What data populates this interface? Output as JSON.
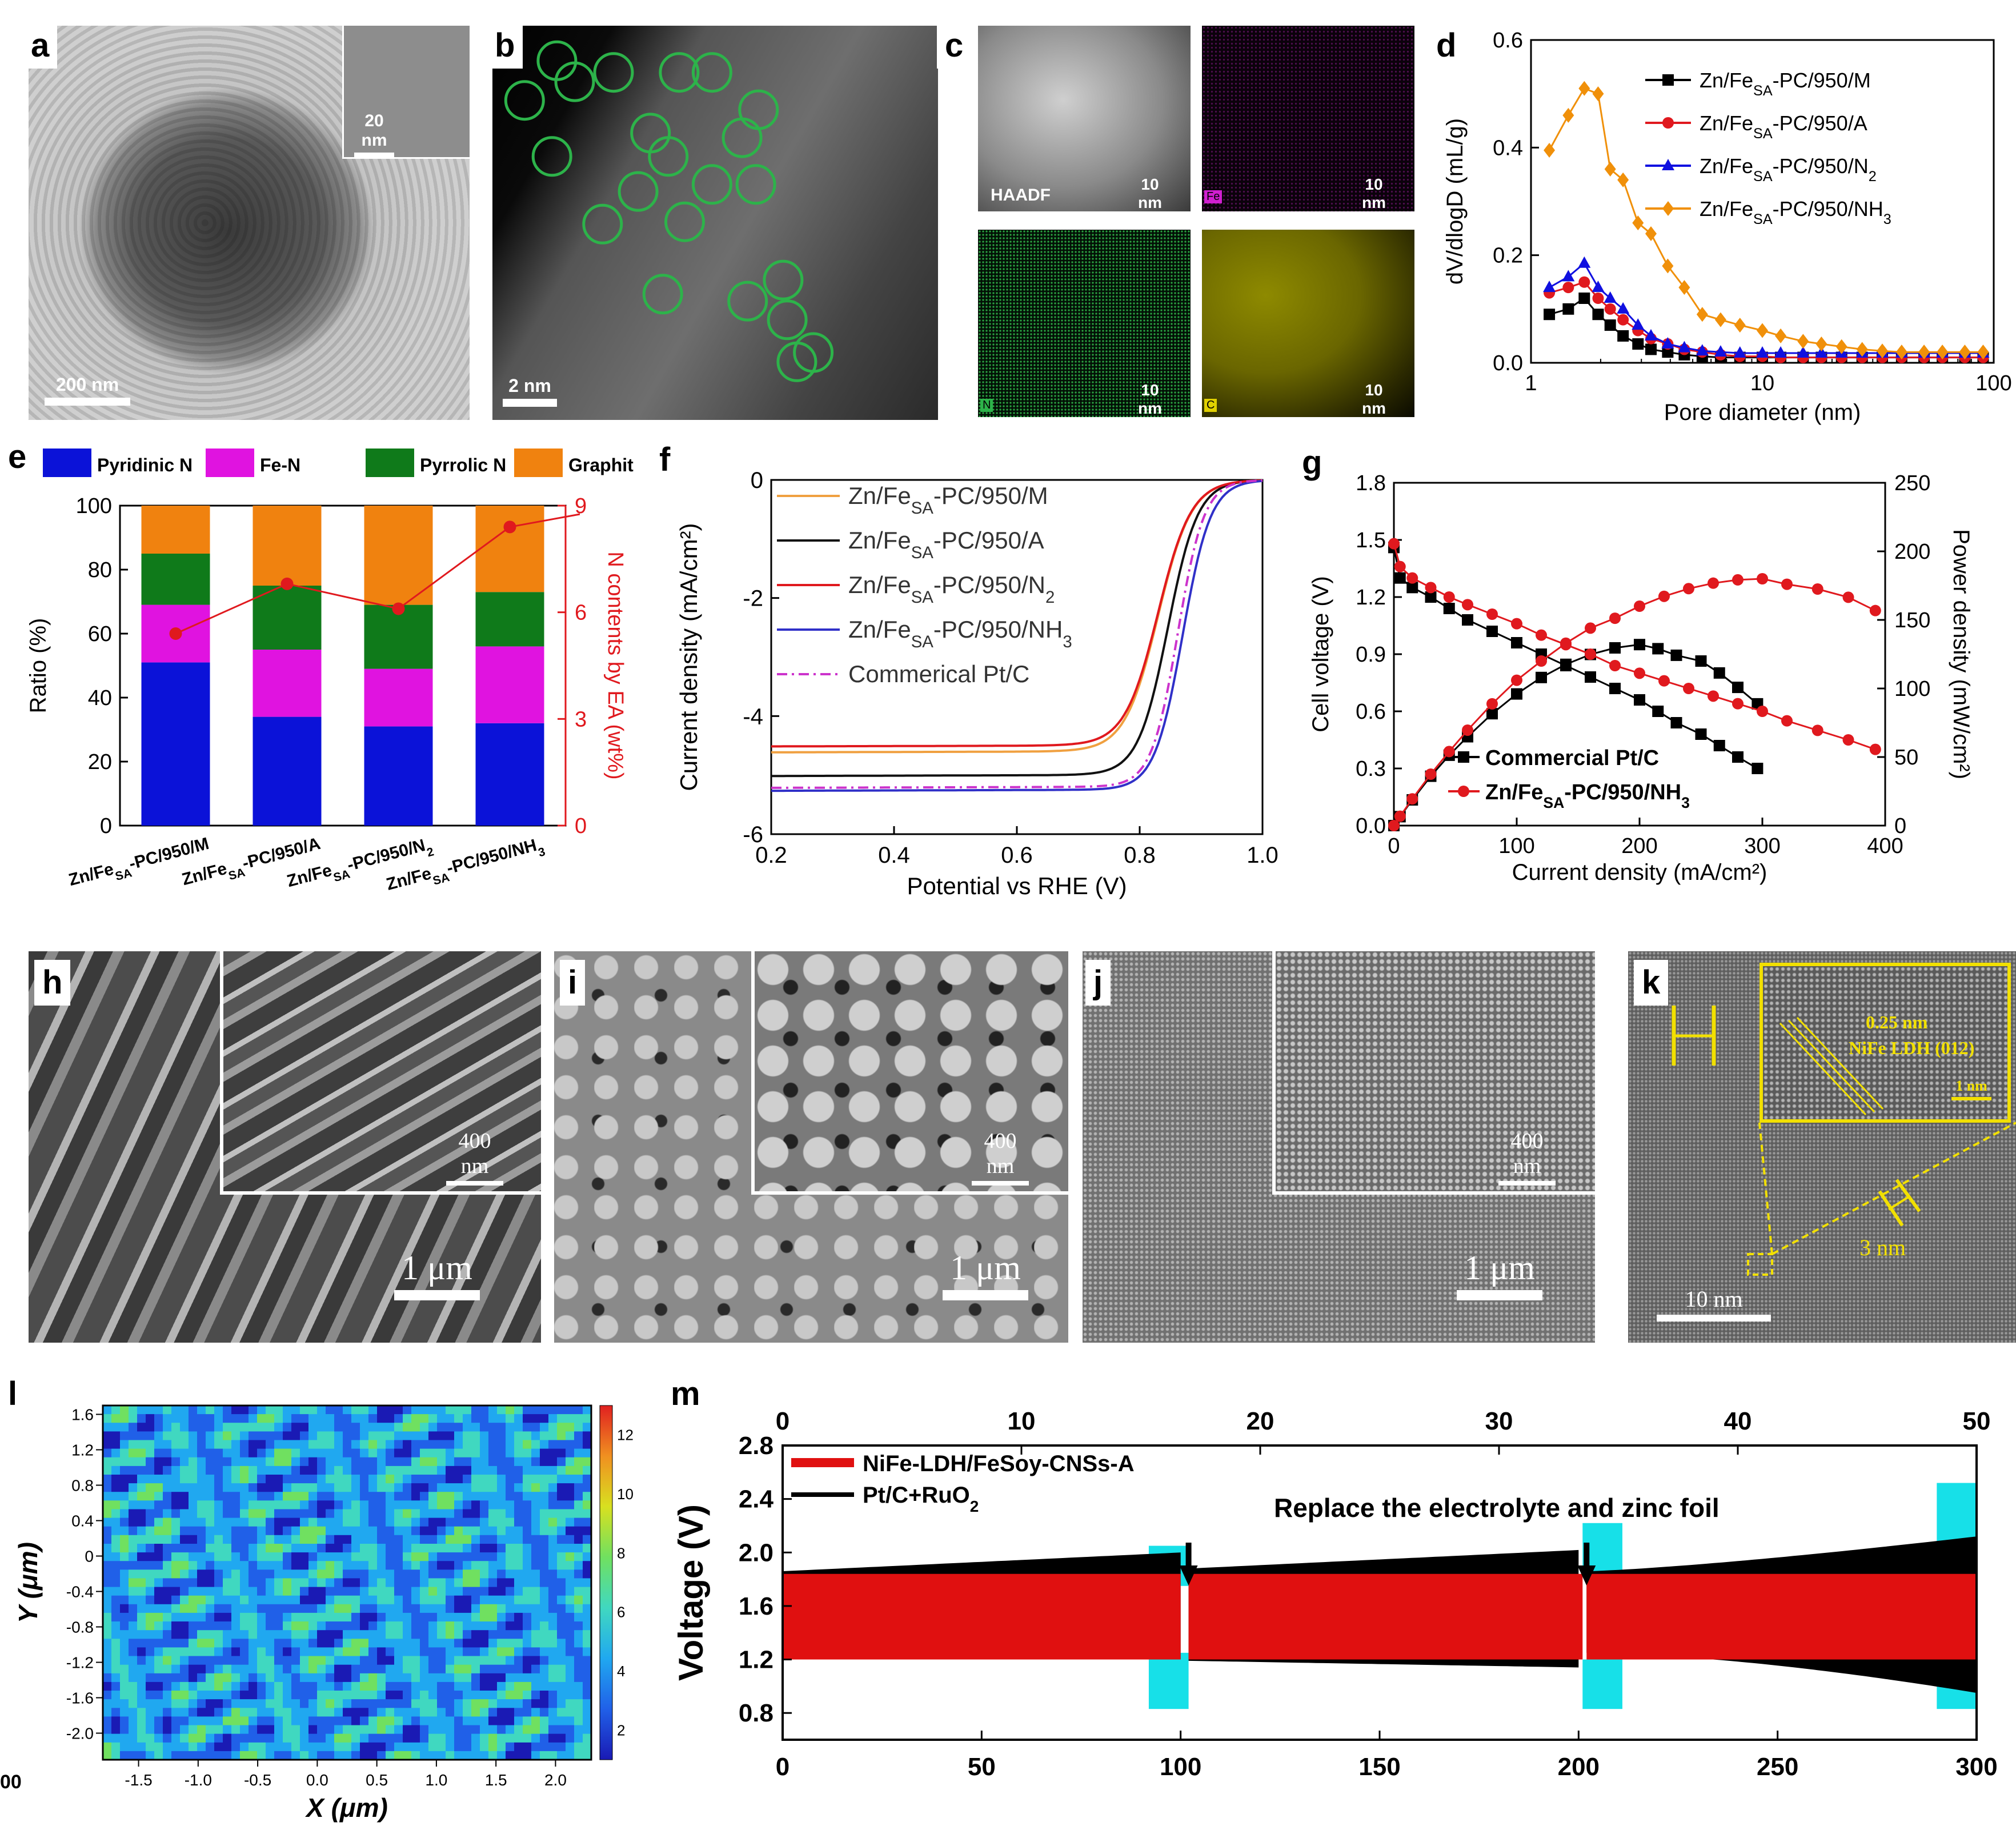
{
  "panel_labels": {
    "a": "a",
    "b": "b",
    "c": "c",
    "d": "d",
    "e": "e",
    "f": "f",
    "g": "g",
    "h": "h",
    "i": "i",
    "j": "j",
    "k": "k",
    "l": "l",
    "m": "m"
  },
  "micro": {
    "a_scale": "200 nm",
    "a_inset_scale": "20 nm",
    "b_scale": "2 nm",
    "c_haadf": "HAADF",
    "c_fe": "Fe",
    "c_n": "N",
    "c_c": "C",
    "c_scale": "10 nm",
    "h_inset_scale": "400 nm",
    "h_scale": "1 μm",
    "i_inset_scale": "400 nm",
    "i_scale": "1 μm",
    "j_inset_scale": "400 nm",
    "j_scale": "1 μm",
    "k_spacing": "0.25 nm",
    "k_phase": "NiFe LDH (012)",
    "k_inset_scale": "1 nm",
    "k_thickness": "3 nm",
    "k_scale": "10 nm",
    "l_corner": "00"
  },
  "colors": {
    "green": "#2db34a",
    "magenta": "#d01fd0",
    "yellow": "#e0d000",
    "cyan": "#17e0e8"
  },
  "chart_data": [
    {
      "id": "d",
      "type": "line",
      "xlabel": "Pore diameter (nm)",
      "ylabel": "dV/dlogD (mL/g)",
      "xscale": "log",
      "xlim": [
        1,
        100
      ],
      "ylim": [
        0,
        0.6
      ],
      "xticks": [
        "1",
        "10",
        "100"
      ],
      "yticks": [
        "0.0",
        "0.2",
        "0.4",
        "0.6"
      ],
      "legend": "top-right",
      "x": [
        1.2,
        1.45,
        1.7,
        1.95,
        2.2,
        2.5,
        2.9,
        3.3,
        3.9,
        4.6,
        5.5,
        6.6,
        8,
        10,
        12,
        15,
        18,
        22,
        27,
        33,
        40,
        50,
        60,
        75,
        90
      ],
      "series": [
        {
          "name": "Zn/FeSA-PC/950/M",
          "base": "Zn/Fe",
          "sub": "SA",
          "tail": "-PC/950/M",
          "color": "#000000",
          "marker": "square",
          "values": [
            0.09,
            0.1,
            0.12,
            0.09,
            0.07,
            0.05,
            0.035,
            0.025,
            0.02,
            0.015,
            0.012,
            0.01,
            0.01,
            0.01,
            0.01,
            0.01,
            0.01,
            0.01,
            0.01,
            0.01,
            0.01,
            0.01,
            0.01,
            0.01,
            0.01
          ]
        },
        {
          "name": "Zn/FeSA-PC/950/A",
          "base": "Zn/Fe",
          "sub": "SA",
          "tail": "-PC/950/A",
          "color": "#e0191e",
          "marker": "circle",
          "values": [
            0.13,
            0.14,
            0.15,
            0.12,
            0.1,
            0.08,
            0.06,
            0.045,
            0.035,
            0.025,
            0.02,
            0.015,
            0.012,
            0.012,
            0.01,
            0.01,
            0.01,
            0.01,
            0.01,
            0.01,
            0.01,
            0.01,
            0.01,
            0.01,
            0.01
          ]
        },
        {
          "name": "Zn/FeSA-PC/950/N2",
          "base": "Zn/Fe",
          "sub": "SA",
          "tail": "-PC/950/N",
          "tailsub": "2",
          "color": "#1010e0",
          "marker": "triangle",
          "values": [
            0.14,
            0.16,
            0.185,
            0.14,
            0.12,
            0.1,
            0.07,
            0.05,
            0.035,
            0.028,
            0.022,
            0.02,
            0.018,
            0.018,
            0.018,
            0.018,
            0.018,
            0.018,
            0.018,
            0.018,
            0.018,
            0.018,
            0.018,
            0.018,
            0.018
          ]
        },
        {
          "name": "Zn/FeSA-PC/950/NH3",
          "base": "Zn/Fe",
          "sub": "SA",
          "tail": "-PC/950/NH",
          "tailsub": "3",
          "color": "#f0900a",
          "marker": "diamond",
          "values": [
            0.395,
            0.46,
            0.51,
            0.5,
            0.36,
            0.34,
            0.26,
            0.24,
            0.18,
            0.14,
            0.09,
            0.08,
            0.07,
            0.06,
            0.05,
            0.04,
            0.035,
            0.03,
            0.025,
            0.022,
            0.02,
            0.02,
            0.02,
            0.02,
            0.02
          ]
        }
      ]
    },
    {
      "id": "e",
      "type": "bar",
      "ylabel": "Ratio (%)",
      "y2label": "N contents by EA (wt%)",
      "ylim": [
        0,
        100
      ],
      "y2lim": [
        0,
        9
      ],
      "yticks": [
        "0",
        "20",
        "40",
        "60",
        "80",
        "100"
      ],
      "y2ticks": [
        "0",
        "3",
        "6",
        "9"
      ],
      "categories": [
        {
          "name": "Zn/FeSA-PC/950/M",
          "base": "Zn/Fe",
          "sub": "SA",
          "tail": "-PC/950/M"
        },
        {
          "name": "Zn/FeSA-PC/950/A",
          "base": "Zn/Fe",
          "sub": "SA",
          "tail": "-PC/950/A"
        },
        {
          "name": "Zn/FeSA-PC/950/N2",
          "base": "Zn/Fe",
          "sub": "SA",
          "tail": "-PC/950/N",
          "tailsub": "2"
        },
        {
          "name": "Zn/FeSA-PC/950/NH3",
          "base": "Zn/Fe",
          "sub": "SA",
          "tail": "-PC/950/NH",
          "tailsub": "3"
        }
      ],
      "series": [
        {
          "name": "Pyridinic N",
          "color": "#0b12d8",
          "values": [
            51,
            34,
            31,
            32
          ]
        },
        {
          "name": "Fe-N",
          "color": "#e013e0",
          "values": [
            18,
            21,
            18,
            24
          ]
        },
        {
          "name": "Pyrrolic N",
          "color": "#0f7a1a",
          "values": [
            16,
            20,
            20,
            17
          ]
        },
        {
          "name": "Graphitc N",
          "color": "#f0820f",
          "values": [
            15,
            25,
            31,
            27
          ]
        }
      ],
      "line": {
        "name": "N contents by EA",
        "color": "#e0191e",
        "values": [
          5.4,
          6.8,
          6.1,
          8.4
        ]
      }
    },
    {
      "id": "f",
      "type": "line",
      "xlabel": "Potential vs RHE (V)",
      "ylabel": "Current density (mA/cm²)",
      "xlim": [
        0.2,
        1.0
      ],
      "ylim": [
        -6,
        0
      ],
      "xticks": [
        "0.2",
        "0.4",
        "0.6",
        "0.8",
        "1.0"
      ],
      "yticks": [
        "0",
        "-2",
        "-4",
        "-6"
      ],
      "legend": "top-left",
      "series": [
        {
          "name": "Zn/FeSA-PC/950/M",
          "base": "Zn/Fe",
          "sub": "SA",
          "tail": "-PC/950/M",
          "color": "#f0a040",
          "dash": false,
          "limit": -4.6,
          "e_half": 0.83,
          "width": 0.038
        },
        {
          "name": "Zn/FeSA-PC/950/A",
          "base": "Zn/Fe",
          "sub": "SA",
          "tail": "-PC/950/A",
          "color": "#111111",
          "dash": false,
          "limit": -5.0,
          "e_half": 0.846,
          "width": 0.034
        },
        {
          "name": "Zn/FeSA-PC/950/N2",
          "base": "Zn/Fe",
          "sub": "SA",
          "tail": "-PC/950/N",
          "tailsub": "2",
          "color": "#e0191e",
          "dash": false,
          "limit": -4.5,
          "e_half": 0.83,
          "width": 0.038
        },
        {
          "name": "Zn/FeSA-PC/950/NH3",
          "base": "Zn/Fe",
          "sub": "SA",
          "tail": "-PC/950/NH",
          "tailsub": "3",
          "color": "#3030c8",
          "dash": false,
          "limit": -5.25,
          "e_half": 0.87,
          "width": 0.032
        },
        {
          "name": "Commerical Pt/C",
          "base": "Commerical Pt/C",
          "sub": "",
          "tail": "",
          "color": "#cc33cc",
          "dash": true,
          "limit": -5.2,
          "e_half": 0.862,
          "width": 0.03
        }
      ]
    },
    {
      "id": "g",
      "type": "line",
      "xlabel": "Current density (mA/cm²)",
      "ylabel": "Cell voltage (V)",
      "y2label": "Power density (mW/cm²)",
      "xlim": [
        0,
        400
      ],
      "ylim": [
        0,
        1.8
      ],
      "y2lim": [
        0,
        250
      ],
      "xticks": [
        "0",
        "100",
        "200",
        "300",
        "400"
      ],
      "yticks": [
        "0.0",
        "0.3",
        "0.6",
        "0.9",
        "1.2",
        "1.5",
        "1.8"
      ],
      "y2ticks": [
        "0",
        "50",
        "100",
        "150",
        "200",
        "250"
      ],
      "legend": "bottom-left",
      "series": [
        {
          "name": "Commercial Pt/C",
          "color": "#000000",
          "marker": "square",
          "xmax": 296,
          "voltage": [
            1.46,
            1.3,
            1.25,
            1.2,
            1.14,
            1.08,
            1.02,
            0.96,
            0.9,
            0.84,
            0.78,
            0.72,
            0.66,
            0.6,
            0.54,
            0.48,
            0.42,
            0.36,
            0.3
          ],
          "x": [
            0,
            5,
            15,
            30,
            45,
            60,
            80,
            100,
            120,
            140,
            160,
            180,
            200,
            215,
            230,
            250,
            265,
            280,
            296
          ]
        },
        {
          "name": "Zn/FeSA-PC/950/NH3",
          "base": "Zn/Fe",
          "sub": "SA",
          "tail": "-PC/950/NH",
          "tailsub": "3",
          "color": "#e0191e",
          "marker": "circle",
          "xmax": 392,
          "voltage": [
            1.48,
            1.36,
            1.3,
            1.25,
            1.2,
            1.16,
            1.11,
            1.06,
            1.0,
            0.95,
            0.9,
            0.84,
            0.8,
            0.76,
            0.72,
            0.68,
            0.64,
            0.6,
            0.55,
            0.5,
            0.45,
            0.4
          ],
          "x": [
            0,
            5,
            15,
            30,
            45,
            60,
            80,
            100,
            120,
            140,
            160,
            180,
            200,
            220,
            240,
            260,
            280,
            300,
            320,
            345,
            370,
            392
          ]
        }
      ]
    },
    {
      "id": "l",
      "type": "heatmap",
      "xlabel": "X (μm)",
      "ylabel": "Y (μm)",
      "xlim": [
        -1.8,
        2.3
      ],
      "ylim": [
        -2.3,
        1.7
      ],
      "xticks": [
        "-1.5",
        "-1.0",
        "-0.5",
        "0.0",
        "0.5",
        "1.0",
        "1.5",
        "2.0"
      ],
      "yticks": [
        "1.6",
        "1.2",
        "0.8",
        "0.4",
        "0",
        "-0.4",
        "-0.8",
        "-1.2",
        "-1.6",
        "-2.0"
      ],
      "colorbar_ticks": [
        "2",
        "4",
        "6",
        "8",
        "10",
        "12"
      ],
      "zlim": [
        1,
        13
      ]
    },
    {
      "id": "m",
      "type": "line",
      "xlabel": "",
      "ylabel": "Voltage (V)",
      "xlim": [
        0,
        300
      ],
      "x2lim": [
        0,
        50
      ],
      "ylim": [
        0.6,
        2.8
      ],
      "xticks": [
        "0",
        "50",
        "100",
        "150",
        "200",
        "250",
        "300"
      ],
      "x2ticks": [
        "0",
        "10",
        "20",
        "30",
        "40",
        "50"
      ],
      "yticks": [
        "0.8",
        "1.2",
        "1.6",
        "2.0",
        "2.4",
        "2.8"
      ],
      "annotation": "Replace the electrolyte and zinc foil",
      "arrows_at": [
        102,
        202
      ],
      "series": [
        {
          "name": "NiFe-LDH/FeSoy-CNSs-A",
          "color": "#e01010",
          "charge": 1.84,
          "discharge": 1.2
        },
        {
          "name": "Pt/C+RuO2",
          "base": "Pt/C+RuO",
          "sub": "2",
          "color": "#000000",
          "charge_start": 1.86,
          "charge_end": 2.12,
          "discharge_start": 1.25,
          "discharge_end": 0.95
        }
      ]
    }
  ]
}
